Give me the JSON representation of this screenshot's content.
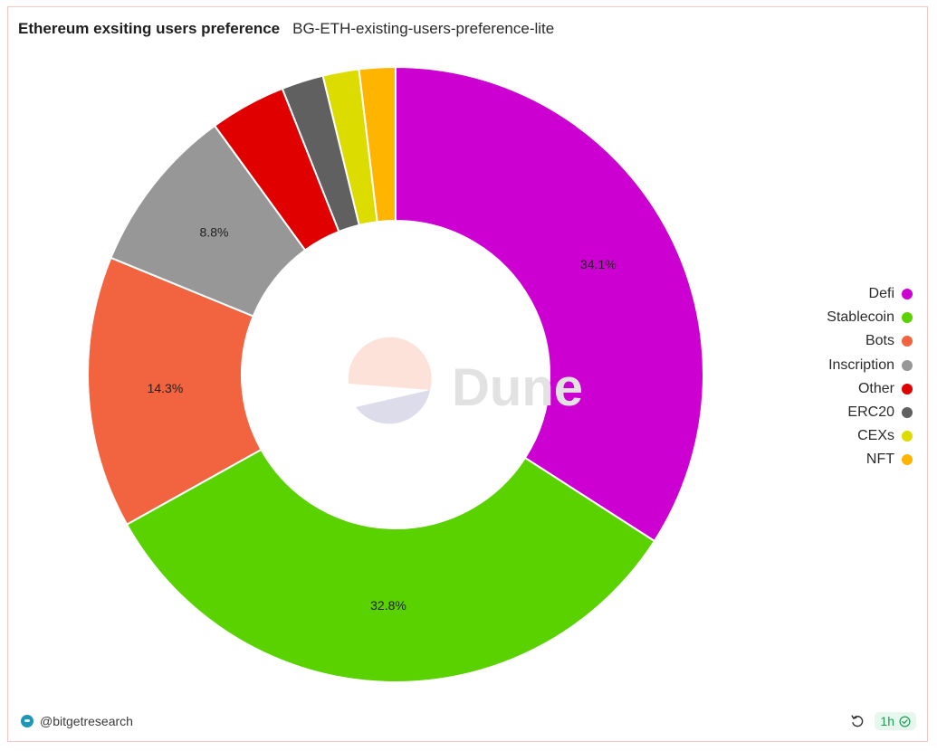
{
  "header": {
    "title": "Ethereum exsiting users preference",
    "subtitle": "BG-ETH-existing-users-preference-lite"
  },
  "watermark": {
    "text": "Dune"
  },
  "footer": {
    "owner": "@bitgetresearch",
    "refresh_label": "1h",
    "icons": {
      "avatar": "bitget-logo-icon",
      "refresh": "refresh-icon",
      "status": "check-circle-icon"
    }
  },
  "chart_data": {
    "type": "pie",
    "donut": true,
    "categories": [
      "Defi",
      "Stablecoin",
      "Bots",
      "Inscription",
      "Other",
      "ERC20",
      "CEXs",
      "NFT"
    ],
    "values": [
      34.1,
      32.8,
      14.3,
      8.8,
      4.0,
      2.2,
      1.9,
      1.9
    ],
    "colors": [
      "#cc00d1",
      "#5ad200",
      "#f26340",
      "#979797",
      "#e00000",
      "#606060",
      "#dcdc00",
      "#ffb400"
    ],
    "data_labels": [
      "34.1%",
      "32.8%",
      "14.3%",
      "8.8%",
      "",
      "",
      "",
      ""
    ],
    "legend_position": "right"
  }
}
